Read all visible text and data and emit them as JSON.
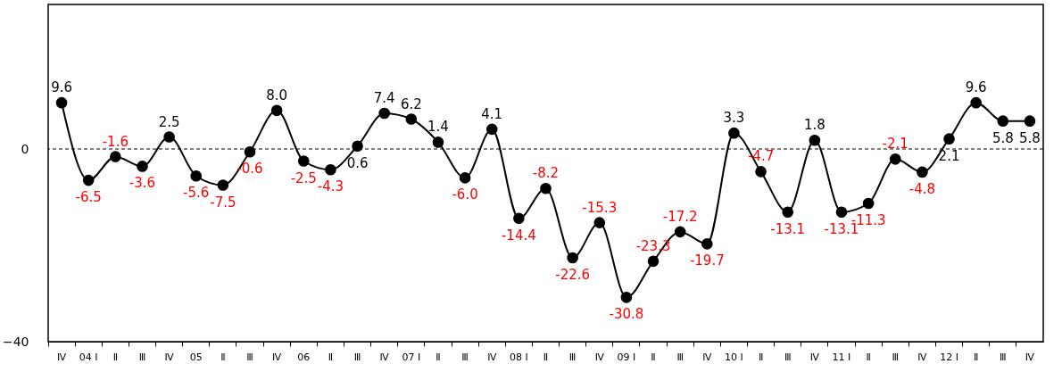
{
  "chart_data": {
    "type": "line",
    "categories": [
      "Ⅳ",
      "04 Ⅰ",
      "Ⅱ",
      "Ⅲ",
      "Ⅳ",
      "05",
      "Ⅱ",
      "Ⅲ",
      "Ⅳ",
      "06",
      "Ⅱ",
      "Ⅲ",
      "Ⅳ",
      "07 Ⅰ",
      "Ⅱ",
      "Ⅲ",
      "Ⅳ",
      "08 Ⅰ",
      "Ⅱ",
      "Ⅲ",
      "Ⅳ",
      "09 Ⅰ",
      "Ⅱ",
      "Ⅲ",
      "Ⅳ",
      "10 Ⅰ",
      "Ⅱ",
      "Ⅲ",
      "Ⅳ",
      "11 Ⅰ",
      "Ⅱ",
      "Ⅲ",
      "Ⅳ",
      "12 Ⅰ",
      "Ⅱ",
      "Ⅲ",
      "Ⅳ"
    ],
    "series": [
      {
        "color": "#000000",
        "values": [
          9.6,
          -6.5,
          -1.6,
          -3.6,
          2.5,
          -5.6,
          -7.5,
          -0.6,
          8.0,
          -2.5,
          -4.3,
          0.6,
          7.4,
          6.2,
          1.4,
          -6.0,
          4.1,
          -14.4,
          -8.2,
          -22.6,
          -15.3,
          -30.8,
          -23.3,
          -17.2,
          -19.7,
          3.3,
          -4.7,
          -13.1,
          1.8,
          -13.1,
          -11.3,
          -2.1,
          -4.8,
          2.1,
          9.6,
          5.8,
          5.8
        ],
        "value_labels": [
          "9.6",
          "-6.5",
          "-1.6",
          "-3.6",
          "2.5",
          "-5.6",
          "-7.5",
          "-0.6",
          "8.0",
          "-2.5",
          "-4.3",
          "0.6",
          "7.4",
          "6.2",
          "1.4",
          "-6.0",
          "4.1",
          "-14.4",
          "-8.2",
          "-22.6",
          "-15.3",
          "-30.8",
          "-23.3",
          "-17.2",
          "-19.7",
          "3.3",
          "-4.7",
          "-13.1",
          "1.8",
          "-13.1",
          "-11.3",
          "-2.1",
          "-4.8",
          "2.1",
          "9.6",
          "5.8",
          "5.8"
        ]
      }
    ],
    "ylim": [
      -40,
      30
    ],
    "yticks": [
      0,
      -40
    ],
    "ref_lines": [
      {
        "axis": "y",
        "value": 0,
        "line_style": "dashed",
        "color": "#000000"
      }
    ],
    "marker": "circle",
    "line_style": "solid",
    "grid": false
  }
}
